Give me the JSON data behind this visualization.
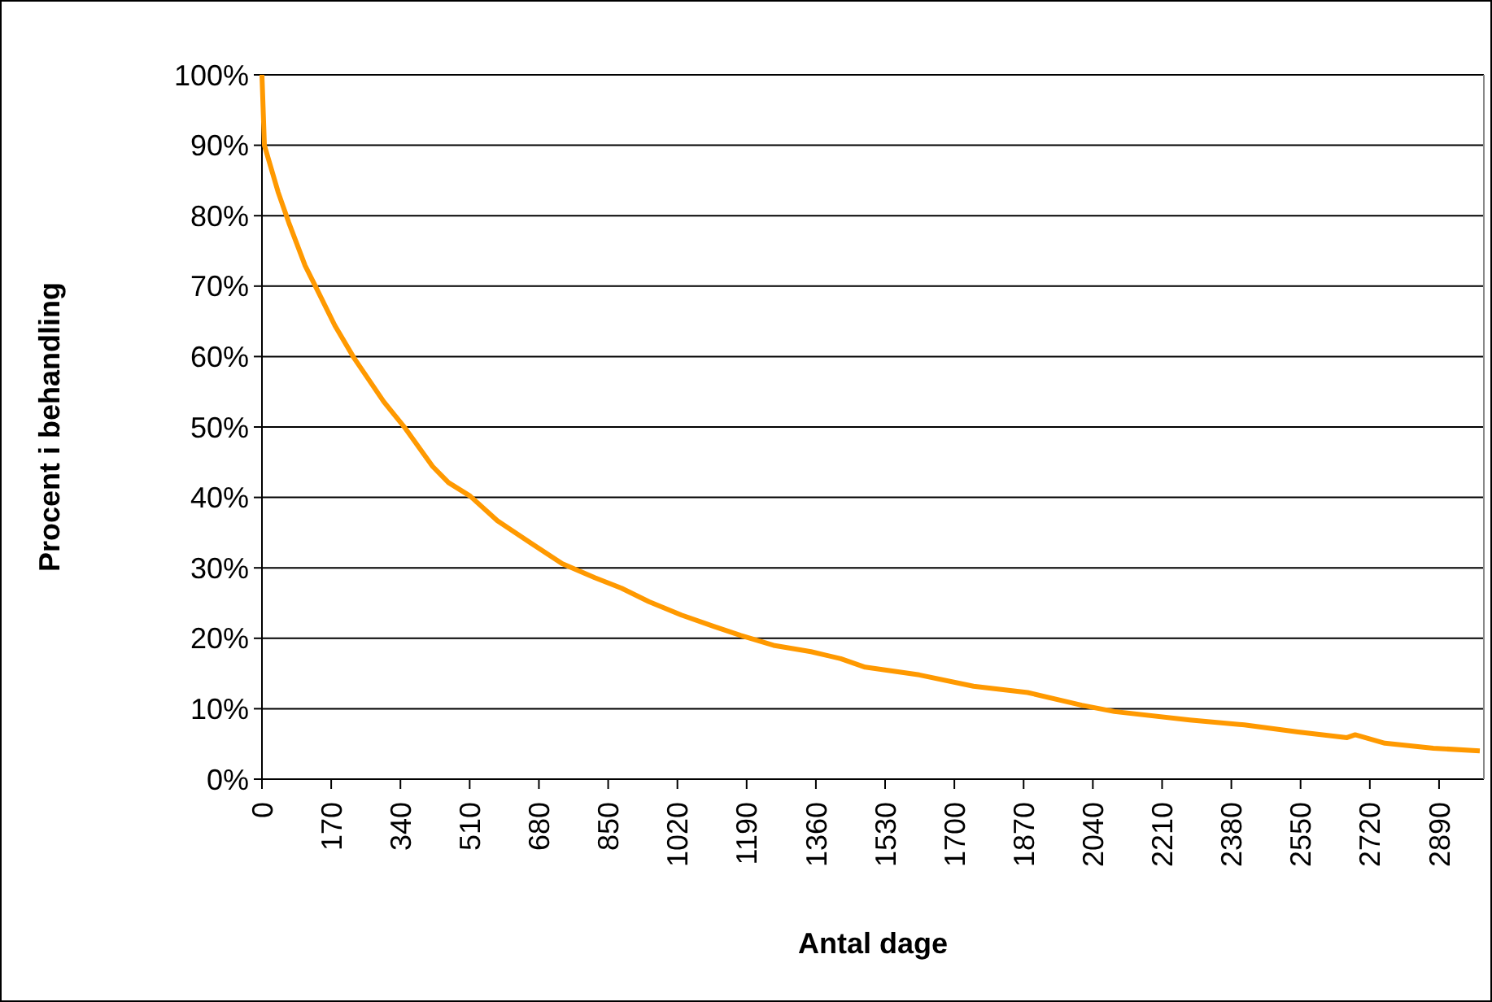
{
  "chart_data": {
    "type": "line",
    "xlabel": "Antal dage",
    "ylabel": "Procent i behandling",
    "x": [
      0,
      6,
      40,
      66,
      106,
      133,
      179,
      226,
      299,
      352,
      419,
      458,
      511,
      578,
      658,
      737,
      817,
      883,
      950,
      1030,
      1109,
      1176,
      1256,
      1348,
      1421,
      1481,
      1614,
      1747,
      1880,
      2013,
      2093,
      2278,
      2412,
      2544,
      2664,
      2684,
      2757,
      2876,
      2990
    ],
    "series": [
      {
        "color": "#ff9900",
        "values": [
          100,
          90,
          83.3,
          79,
          72.9,
          69.8,
          64.4,
          59.8,
          53.6,
          49.8,
          44.4,
          42.1,
          40.2,
          36.7,
          33.6,
          30.6,
          28.6,
          27.1,
          25.2,
          23.3,
          21.7,
          20.4,
          19,
          18.1,
          17.1,
          15.9,
          14.8,
          13.2,
          12.3,
          10.5,
          9.6,
          8.4,
          7.7,
          6.7,
          5.9,
          6.3,
          5.1,
          4.4,
          4
        ]
      }
    ],
    "xlim": [
      0,
      3000
    ],
    "xticks": [
      0,
      170,
      340,
      510,
      680,
      850,
      1020,
      1190,
      1360,
      1530,
      1700,
      1870,
      2040,
      2210,
      2380,
      2550,
      2720,
      2890
    ],
    "ylim": [
      0,
      100
    ],
    "yticks": [
      {
        "value": 0,
        "label": "0%"
      },
      {
        "value": 10,
        "label": "10%"
      },
      {
        "value": 20,
        "label": "20%"
      },
      {
        "value": 30,
        "label": "30%"
      },
      {
        "value": 40,
        "label": "40%"
      },
      {
        "value": 50,
        "label": "50%"
      },
      {
        "value": 60,
        "label": "60%"
      },
      {
        "value": 70,
        "label": "70%"
      },
      {
        "value": 80,
        "label": "80%"
      },
      {
        "value": 90,
        "label": "90%"
      },
      {
        "value": 100,
        "label": "100%"
      }
    ],
    "grid": "y",
    "marker": "none",
    "line_style": "solid"
  }
}
